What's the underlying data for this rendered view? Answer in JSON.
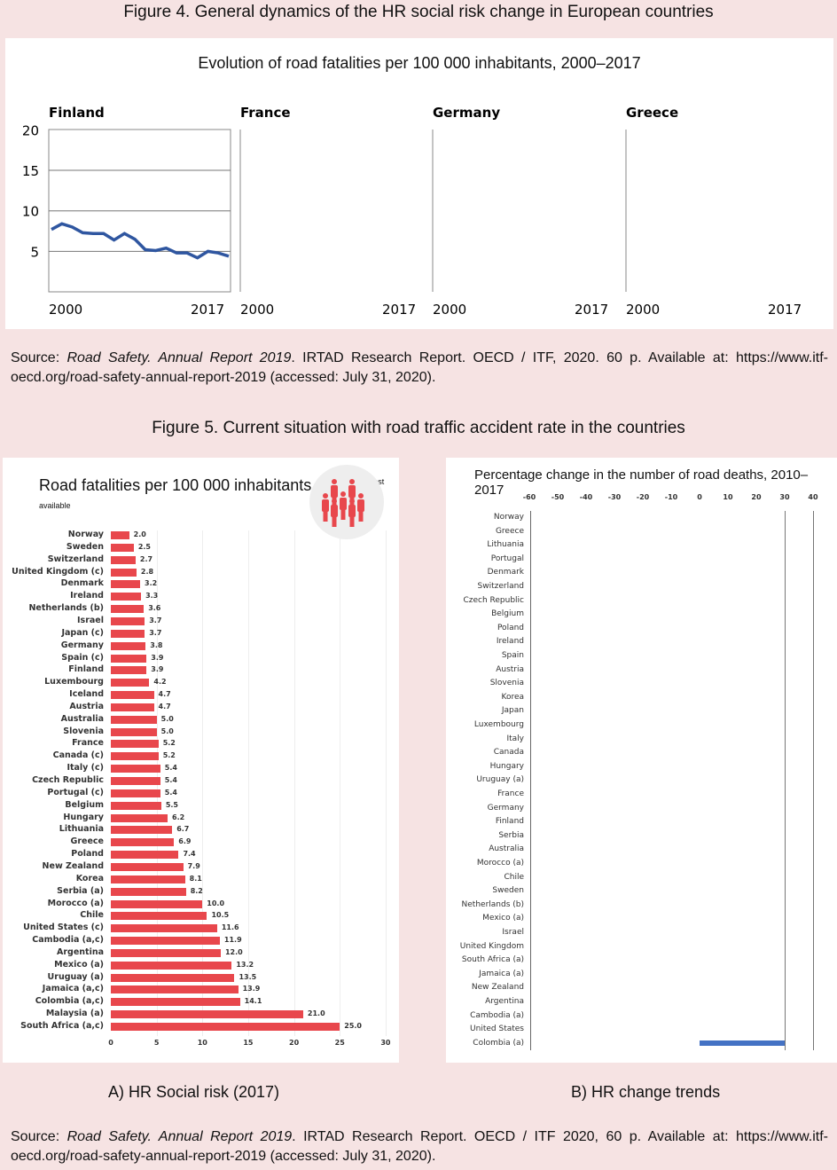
{
  "figure4": {
    "caption": "Figure 4. General dynamics of the HR social risk change in European countries",
    "title": "Evolution of road fatalities per 100 000 inhabitants, 2000–2017",
    "panels": [
      {
        "name": "Finland",
        "x_start": "2000",
        "x_end": "2017"
      },
      {
        "name": "France",
        "x_start": "2000",
        "x_end": "2017"
      },
      {
        "name": "Germany",
        "x_start": "2000",
        "x_end": "2017"
      },
      {
        "name": "Greece",
        "x_start": "2000",
        "x_end": "2017"
      }
    ],
    "yticks": [
      "20",
      "15",
      "10",
      "5"
    ]
  },
  "source1": {
    "prefix": "Source: ",
    "italic": "Road Safety. Annual Report 2019",
    "rest": ". IRTAD Research Report. OECD / ITF, 2020. 60 p. Available at: https://www.itf-oecd.org/road-safety-annual-report-2019 (accessed: July 31, 2020)."
  },
  "figure5": {
    "caption": "Figure 5. Current situation with road traffic accident rate in the countries",
    "left_label": "A) HR Social risk (2017)",
    "right_label": "B) HR change trends"
  },
  "source2": {
    "prefix": "Source: ",
    "italic": "Road Safety. Annual Report 2019",
    "rest": ". IRTAD Research Report. OECD / ITF 2020, 60 p. Available at: https://www.itf-oecd.org/road-safety-annual-report-2019 (accessed: July 31, 2020)."
  },
  "colors": {
    "finland_line": "#2f56a0",
    "bar_red": "#e8474c",
    "bar_blue": "#4472c4",
    "background": "#f6e3e3"
  },
  "chart_data": [
    {
      "type": "line",
      "title": "Finland",
      "x": [
        2000,
        2001,
        2002,
        2003,
        2004,
        2005,
        2006,
        2007,
        2008,
        2009,
        2010,
        2011,
        2012,
        2013,
        2014,
        2015,
        2016,
        2017
      ],
      "values": [
        7.7,
        8.4,
        8.0,
        7.3,
        7.2,
        7.2,
        6.4,
        7.2,
        6.5,
        5.2,
        5.1,
        5.4,
        4.8,
        4.8,
        4.2,
        5.0,
        4.8,
        4.4
      ],
      "ylim": [
        0,
        20
      ],
      "xlabel": "",
      "ylabel": ""
    },
    {
      "type": "bar",
      "title": "Road fatalities per 100 000 inhabitants 2017",
      "subtitle": "or latest available",
      "xlim": [
        0,
        30
      ],
      "xticks": [
        "0",
        "5",
        "10",
        "15",
        "20",
        "25",
        "30"
      ],
      "categories": [
        "Norway",
        "Sweden",
        "Switzerland",
        "United Kingdom (c)",
        "Denmark",
        "Ireland",
        "Netherlands (b)",
        "Israel",
        "Japan (c)",
        "Germany",
        "Spain (c)",
        "Finland",
        "Luxembourg",
        "Iceland",
        "Austria",
        "Australia",
        "Slovenia",
        "France",
        "Canada (c)",
        "Italy (c)",
        "Czech Republic",
        "Portugal (c)",
        "Belgium",
        "Hungary",
        "Lithuania",
        "Greece",
        "Poland",
        "New Zealand",
        "Korea",
        "Serbia (a)",
        "Morocco (a)",
        "Chile",
        "United States (c)",
        "Cambodia (a,c)",
        "Argentina",
        "Mexico (a)",
        "Uruguay (a)",
        "Jamaica (a,c)",
        "Colombia (a,c)",
        "Malaysia (a)",
        "South Africa (a,c)"
      ],
      "values": [
        2.0,
        2.5,
        2.7,
        2.8,
        3.2,
        3.3,
        3.6,
        3.7,
        3.7,
        3.8,
        3.9,
        3.9,
        4.2,
        4.7,
        4.7,
        5.0,
        5.0,
        5.2,
        5.2,
        5.4,
        5.4,
        5.4,
        5.5,
        6.2,
        6.7,
        6.9,
        7.4,
        7.9,
        8.1,
        8.2,
        10.0,
        10.5,
        11.6,
        11.9,
        12.0,
        13.2,
        13.5,
        13.9,
        14.1,
        21.0,
        25.0
      ]
    },
    {
      "type": "bar",
      "title": "Percentage change in the number of road deaths, 2010–2017",
      "xlim": [
        -60,
        40
      ],
      "xticks": [
        "-60",
        "-50",
        "-40",
        "-30",
        "-20",
        "-10",
        "0",
        "10",
        "20",
        "30",
        "40"
      ],
      "categories": [
        "Norway",
        "Greece",
        "Lithuania",
        "Portugal",
        "Denmark",
        "Switzerland",
        "Czech Republic",
        "Belgium",
        "Poland",
        "Ireland",
        "Spain",
        "Austria",
        "Slovenia",
        "Korea",
        "Japan",
        "Luxembourg",
        "Italy",
        "Canada",
        "Hungary",
        "Uruguay (a)",
        "France",
        "Germany",
        "Finland",
        "Serbia",
        "Australia",
        "Morocco (a)",
        "Chile",
        "Sweden",
        "Netherlands (b)",
        "Mexico (a)",
        "Israel",
        "United Kingdom",
        "South Africa (a)",
        "Jamaica (a)",
        "New Zealand",
        "Argentina",
        "Cambodia (a)",
        "United States",
        "Colombia (a)"
      ],
      "values": [
        null,
        null,
        null,
        null,
        null,
        null,
        null,
        null,
        null,
        null,
        null,
        null,
        null,
        null,
        null,
        null,
        null,
        null,
        null,
        null,
        null,
        null,
        null,
        null,
        null,
        null,
        null,
        null,
        null,
        null,
        null,
        null,
        null,
        null,
        null,
        null,
        null,
        null,
        30
      ]
    }
  ]
}
